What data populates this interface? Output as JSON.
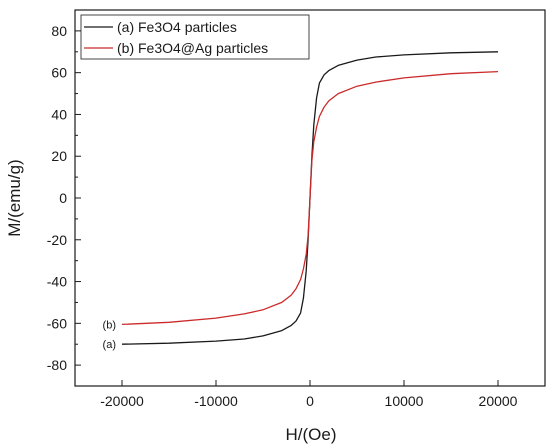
{
  "chart_data": {
    "type": "line",
    "title": "",
    "xlabel": "H/(Oe)",
    "ylabel": "M/(emu/g)",
    "xlim": [
      -25000,
      25000
    ],
    "ylim": [
      -90,
      90
    ],
    "x_ticks": [
      -20000,
      -10000,
      0,
      10000,
      20000
    ],
    "x_tick_labels": [
      "-20000",
      "-10000",
      "0",
      "10000",
      "20000"
    ],
    "y_ticks": [
      -80,
      -60,
      -40,
      -20,
      0,
      20,
      40,
      60,
      80
    ],
    "y_tick_labels": [
      "-80",
      "-60",
      "-40",
      "-20",
      "0",
      "20",
      "40",
      "60",
      "80"
    ],
    "grid": false,
    "legend": "top-left",
    "series": [
      {
        "name": "(a) Fe3O4 particles",
        "color": "#1a1a1a",
        "end_label": "(a)",
        "x": [
          -20000,
          -15000,
          -10000,
          -7000,
          -5000,
          -3000,
          -2000,
          -1500,
          -1000,
          -700,
          -400,
          -200,
          0,
          200,
          400,
          700,
          1000,
          1500,
          2000,
          3000,
          5000,
          7000,
          10000,
          15000,
          20000
        ],
        "y": [
          -70,
          -69.5,
          -68.5,
          -67.5,
          -66,
          -63.5,
          -61,
          -59,
          -55,
          -48,
          -35,
          -20,
          0,
          20,
          35,
          48,
          55,
          59,
          61,
          63.5,
          66,
          67.5,
          68.5,
          69.5,
          70
        ]
      },
      {
        "name": "(b) Fe3O4@Ag particles",
        "color": "#cc2a2a",
        "end_label": "(b)",
        "x": [
          -20000,
          -15000,
          -10000,
          -7000,
          -5000,
          -3000,
          -2000,
          -1500,
          -1000,
          -700,
          -400,
          -200,
          0,
          200,
          400,
          700,
          1000,
          1500,
          2000,
          3000,
          5000,
          7000,
          10000,
          15000,
          20000
        ],
        "y": [
          -60.5,
          -59.5,
          -57.5,
          -55.5,
          -53.5,
          -50,
          -46.5,
          -43.5,
          -39,
          -34,
          -27,
          -18,
          0,
          18,
          27,
          34,
          39,
          43.5,
          46.5,
          50,
          53.5,
          55.5,
          57.5,
          59.5,
          60.5
        ]
      }
    ]
  }
}
